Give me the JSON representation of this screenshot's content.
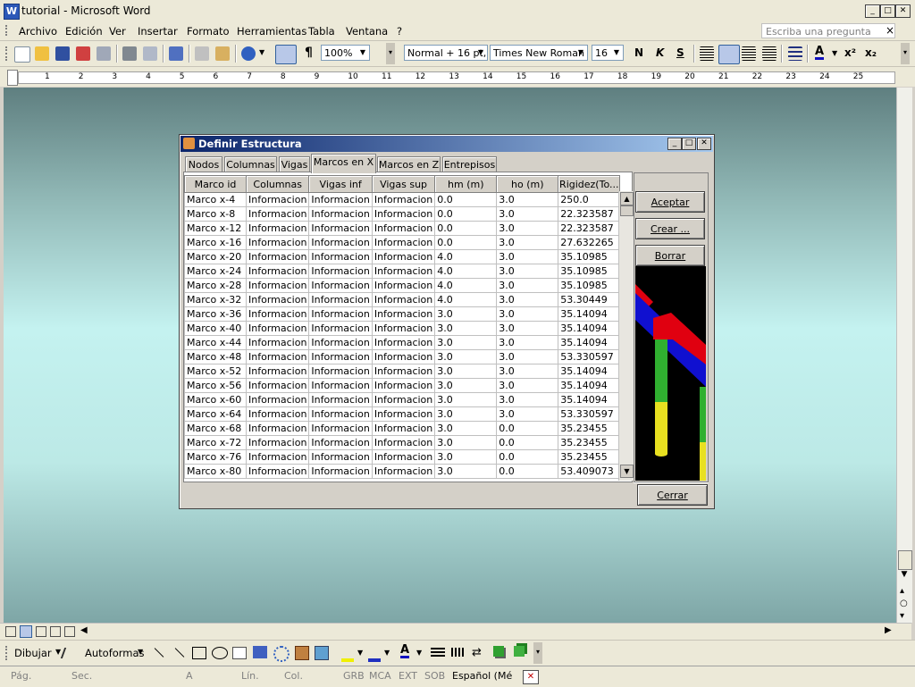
{
  "window": {
    "title": "tutorial - Microsoft Word"
  },
  "menu": {
    "items": [
      "Archivo",
      "Edición",
      "Ver",
      "Insertar",
      "Formato",
      "Herramientas",
      "Tabla",
      "Ventana",
      "?"
    ],
    "ask_placeholder": "Escriba una pregunta",
    "close_symbol": "×"
  },
  "toolbar": {
    "zoom": "100%",
    "style": "Normal + 16 pt,",
    "font": "Times New Roman",
    "size": "16",
    "bold": "N",
    "italic": "K",
    "strike": "S",
    "pilcrow": "¶",
    "font_color": "A",
    "superscript": "x²",
    "subscript": "x₂"
  },
  "ruler": {
    "numbers": [
      "1",
      "2",
      "3",
      "4",
      "5",
      "6",
      "7",
      "8",
      "9",
      "10",
      "11",
      "12",
      "13",
      "14",
      "15",
      "16",
      "17",
      "18",
      "19",
      "20",
      "21",
      "22",
      "23",
      "24",
      "25"
    ]
  },
  "dialog": {
    "title": "Definir Estructura",
    "tabs": [
      "Nodos",
      "Columnas",
      "Vigas",
      "Marcos en X",
      "Marcos en Z",
      "Entrepisos"
    ],
    "active_tab": "Marcos en X",
    "columns": [
      "Marco id",
      "Columnas",
      "Vigas inf",
      "Vigas sup",
      "hm (m)",
      "ho (m)",
      "Rigidez(To..."
    ],
    "rows": [
      [
        "Marco x-4",
        "Informacion",
        "Informacion",
        "Informacion",
        "0.0",
        "3.0",
        "250.0"
      ],
      [
        "Marco x-8",
        "Informacion",
        "Informacion",
        "Informacion",
        "0.0",
        "3.0",
        "22.323587"
      ],
      [
        "Marco x-12",
        "Informacion",
        "Informacion",
        "Informacion",
        "0.0",
        "3.0",
        "22.323587"
      ],
      [
        "Marco x-16",
        "Informacion",
        "Informacion",
        "Informacion",
        "0.0",
        "3.0",
        "27.632265"
      ],
      [
        "Marco x-20",
        "Informacion",
        "Informacion",
        "Informacion",
        "4.0",
        "3.0",
        "35.10985"
      ],
      [
        "Marco x-24",
        "Informacion",
        "Informacion",
        "Informacion",
        "4.0",
        "3.0",
        "35.10985"
      ],
      [
        "Marco x-28",
        "Informacion",
        "Informacion",
        "Informacion",
        "4.0",
        "3.0",
        "35.10985"
      ],
      [
        "Marco x-32",
        "Informacion",
        "Informacion",
        "Informacion",
        "4.0",
        "3.0",
        "53.30449"
      ],
      [
        "Marco x-36",
        "Informacion",
        "Informacion",
        "Informacion",
        "3.0",
        "3.0",
        "35.14094"
      ],
      [
        "Marco x-40",
        "Informacion",
        "Informacion",
        "Informacion",
        "3.0",
        "3.0",
        "35.14094"
      ],
      [
        "Marco x-44",
        "Informacion",
        "Informacion",
        "Informacion",
        "3.0",
        "3.0",
        "35.14094"
      ],
      [
        "Marco x-48",
        "Informacion",
        "Informacion",
        "Informacion",
        "3.0",
        "3.0",
        "53.330597"
      ],
      [
        "Marco x-52",
        "Informacion",
        "Informacion",
        "Informacion",
        "3.0",
        "3.0",
        "35.14094"
      ],
      [
        "Marco x-56",
        "Informacion",
        "Informacion",
        "Informacion",
        "3.0",
        "3.0",
        "35.14094"
      ],
      [
        "Marco x-60",
        "Informacion",
        "Informacion",
        "Informacion",
        "3.0",
        "3.0",
        "35.14094"
      ],
      [
        "Marco x-64",
        "Informacion",
        "Informacion",
        "Informacion",
        "3.0",
        "3.0",
        "53.330597"
      ],
      [
        "Marco x-68",
        "Informacion",
        "Informacion",
        "Informacion",
        "3.0",
        "0.0",
        "35.23455"
      ],
      [
        "Marco x-72",
        "Informacion",
        "Informacion",
        "Informacion",
        "3.0",
        "0.0",
        "35.23455"
      ],
      [
        "Marco x-76",
        "Informacion",
        "Informacion",
        "Informacion",
        "3.0",
        "0.0",
        "35.23455"
      ],
      [
        "Marco x-80",
        "Informacion",
        "Informacion",
        "Informacion",
        "3.0",
        "0.0",
        "53.409073"
      ]
    ],
    "buttons": {
      "accept": "Aceptar",
      "create": "Crear ...",
      "delete": "Borrar",
      "close": "Cerrar"
    }
  },
  "drawing": {
    "draw": "Dibujar",
    "autoshapes": "Autoformas"
  },
  "status": [
    "Pág.",
    "Sec.",
    "A",
    "Lín.",
    "Col.",
    "GRB",
    "MCA",
    "EXT",
    "SOB",
    "Español (Mé"
  ],
  "colors": {
    "title_gradient_start": "#0a246a",
    "title_gradient_end": "#a6caf0",
    "preview_red": "#e00010",
    "preview_blue": "#1010d0",
    "preview_green": "#30b030",
    "preview_yellow": "#e8e020"
  }
}
